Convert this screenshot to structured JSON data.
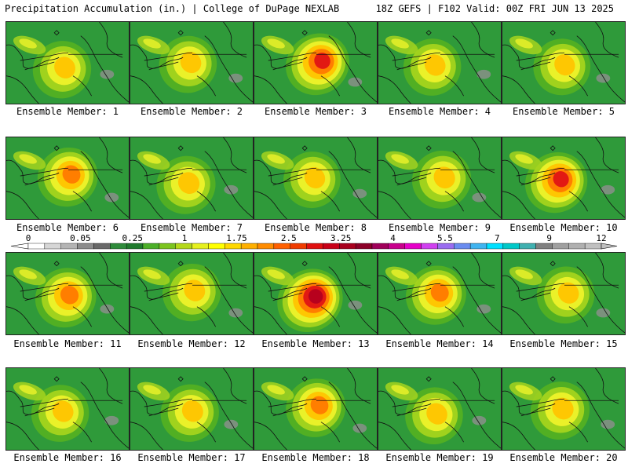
{
  "header": {
    "left": "Precipitation Accumulation (in.) | College of DuPage NEXLAB",
    "right": "18Z GEFS | F102 Valid: 00Z FRI JUN 13 2025"
  },
  "panels": [
    {
      "label": "Ensemble Member: 1",
      "intensity": 0.4
    },
    {
      "label": "Ensemble Member: 2",
      "intensity": 0.35
    },
    {
      "label": "Ensemble Member: 3",
      "intensity": 0.8
    },
    {
      "label": "Ensemble Member: 4",
      "intensity": 0.35
    },
    {
      "label": "Ensemble Member: 5",
      "intensity": 0.3
    },
    {
      "label": "Ensemble Member: 6",
      "intensity": 0.55
    },
    {
      "label": "Ensemble Member: 7",
      "intensity": 0.45
    },
    {
      "label": "Ensemble Member: 8",
      "intensity": 0.3
    },
    {
      "label": "Ensemble Member: 9",
      "intensity": 0.45
    },
    {
      "label": "Ensemble Member: 10",
      "intensity": 0.7
    },
    {
      "label": "Ensemble Member: 11",
      "intensity": 0.6
    },
    {
      "label": "Ensemble Member: 12",
      "intensity": 0.4
    },
    {
      "label": "Ensemble Member: 13",
      "intensity": 0.95
    },
    {
      "label": "Ensemble Member: 14",
      "intensity": 0.55
    },
    {
      "label": "Ensemble Member: 15",
      "intensity": 0.35
    },
    {
      "label": "Ensemble Member: 16",
      "intensity": 0.35
    },
    {
      "label": "Ensemble Member: 17",
      "intensity": 0.4
    },
    {
      "label": "Ensemble Member: 18",
      "intensity": 0.5
    },
    {
      "label": "Ensemble Member: 19",
      "intensity": 0.35
    },
    {
      "label": "Ensemble Member: 20",
      "intensity": 0.45
    }
  ],
  "colorbar": {
    "labels": [
      "0",
      "0.05",
      "0.25",
      "1",
      "1.75",
      "2.5",
      "3.25",
      "4",
      "5.5",
      "7",
      "9",
      "12"
    ],
    "colors": [
      "#ffffff",
      "#d6d6d6",
      "#b4b4b4",
      "#8c8c8c",
      "#696969",
      "#2e8b3a",
      "#1f7a2c",
      "#4caf28",
      "#7cc41f",
      "#b4d81a",
      "#e6f01e",
      "#ffff00",
      "#ffd800",
      "#ffb000",
      "#ff8c00",
      "#ff6000",
      "#f03c00",
      "#e01010",
      "#c80018",
      "#a8001e",
      "#8c0028",
      "#a0005a",
      "#c8008c",
      "#e600c8",
      "#d040f0",
      "#9a6cf0",
      "#6a8cf0",
      "#40b4f0",
      "#00e0ff",
      "#00c8c8",
      "#40b0b0",
      "#808080",
      "#a0a0a0",
      "#b0b0b0",
      "#c0c0c0"
    ]
  },
  "map_colors": {
    "base": "#2f9a3a",
    "levels": [
      "#53b022",
      "#a4d41e",
      "#eef22a",
      "#ffc400",
      "#ff7a00",
      "#e01414",
      "#b4001e"
    ],
    "gray": "#8e8e8e",
    "lines": "#111111"
  }
}
